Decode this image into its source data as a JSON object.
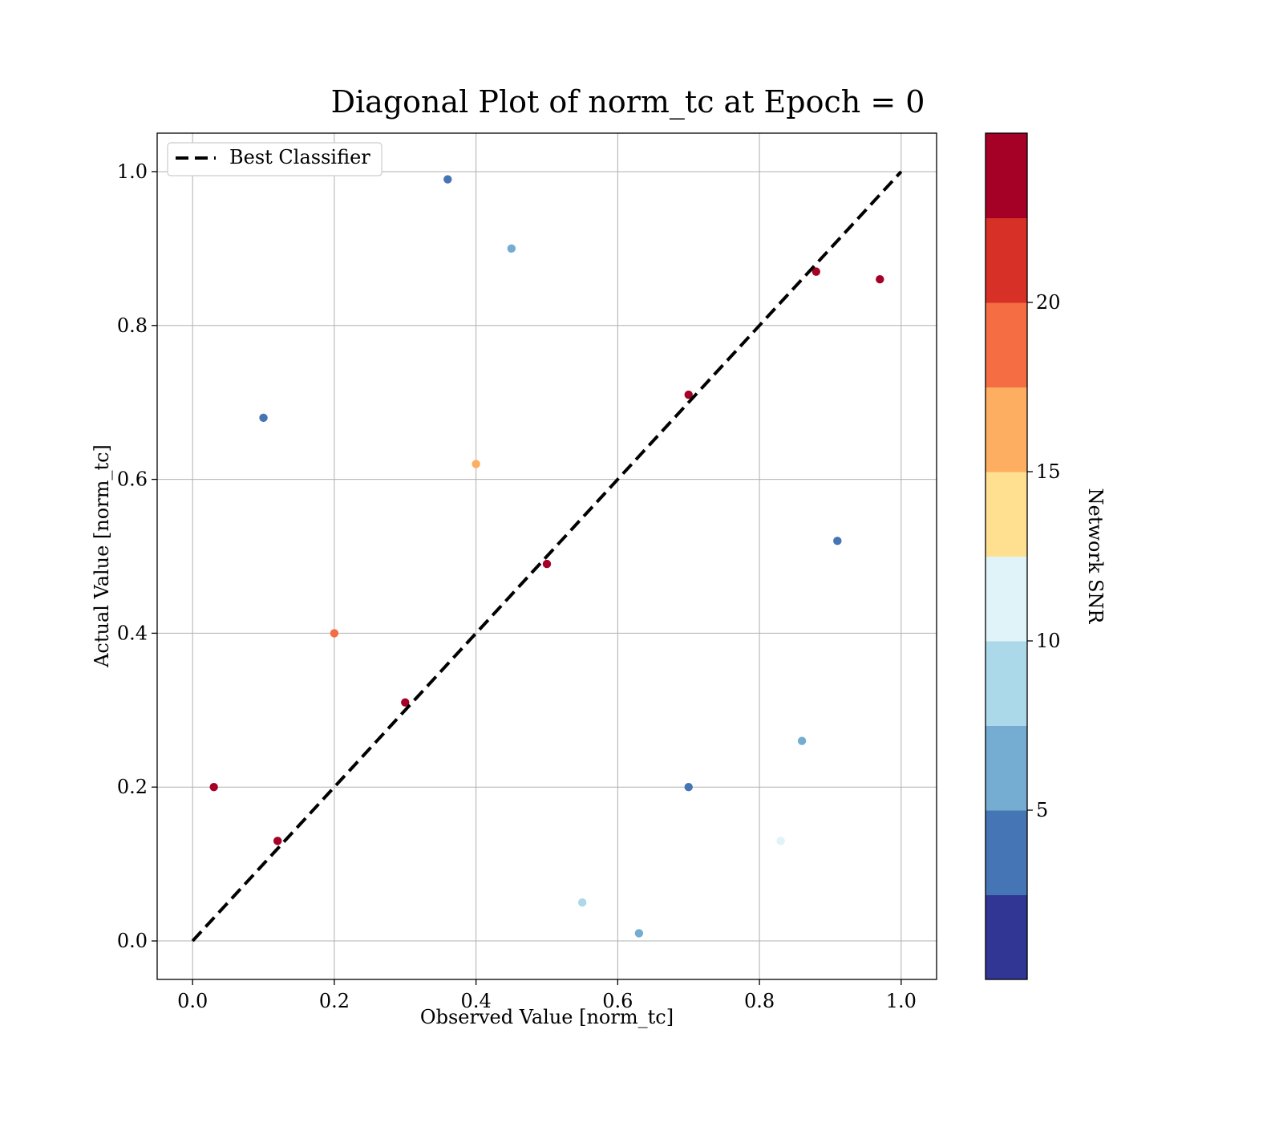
{
  "chart_data": {
    "type": "scatter",
    "title": "Diagonal Plot of norm_tc at Epoch = 0",
    "xlabel": "Observed Value [norm_tc]",
    "ylabel": "Actual Value [norm_tc]",
    "xlim": [
      -0.05,
      1.05
    ],
    "ylim": [
      -0.05,
      1.05
    ],
    "xticks": [
      0.0,
      0.2,
      0.4,
      0.6,
      0.8,
      1.0
    ],
    "yticks": [
      0.0,
      0.2,
      0.4,
      0.6,
      0.8,
      1.0
    ],
    "xtick_labels": [
      "0.0",
      "0.2",
      "0.4",
      "0.6",
      "0.8",
      "1.0"
    ],
    "ytick_labels": [
      "0.0",
      "0.2",
      "0.4",
      "0.6",
      "0.8",
      "1.0"
    ],
    "grid": true,
    "legend": {
      "placement": "top-left",
      "label": "Best Classifier"
    },
    "reference_line": {
      "label": "Best Classifier",
      "x": [
        0.0,
        1.0
      ],
      "y": [
        0.0,
        1.0
      ],
      "style": "dashed",
      "color": "#000000"
    },
    "colorbar": {
      "label": "Network SNR",
      "range": [
        0,
        25
      ],
      "ticks": [
        5,
        10,
        15,
        20
      ],
      "tick_labels": [
        "5",
        "10",
        "15",
        "20"
      ],
      "colors": [
        "#313695",
        "#4575b4",
        "#74add1",
        "#abd9e9",
        "#e0f3f8",
        "#fee090",
        "#fdae61",
        "#f46d43",
        "#d73027",
        "#a50026"
      ]
    },
    "points": [
      {
        "x": 0.12,
        "y": 0.13,
        "snr": 25
      },
      {
        "x": 0.3,
        "y": 0.31,
        "snr": 24
      },
      {
        "x": 0.5,
        "y": 0.49,
        "snr": 25
      },
      {
        "x": 0.7,
        "y": 0.71,
        "snr": 24
      },
      {
        "x": 0.88,
        "y": 0.87,
        "snr": 25
      },
      {
        "x": 0.2,
        "y": 0.4,
        "snr": 19
      },
      {
        "x": 0.4,
        "y": 0.62,
        "snr": 17
      },
      {
        "x": 0.45,
        "y": 0.9,
        "snr": 7
      },
      {
        "x": 0.55,
        "y": 0.05,
        "snr": 8
      },
      {
        "x": 0.7,
        "y": 0.2,
        "snr": 4
      },
      {
        "x": 0.1,
        "y": 0.68,
        "snr": 4
      },
      {
        "x": 0.91,
        "y": 0.52,
        "snr": 3
      },
      {
        "x": 0.83,
        "y": 0.13,
        "snr": 12
      },
      {
        "x": 0.97,
        "y": 0.86,
        "snr": 23
      },
      {
        "x": 0.03,
        "y": 0.2,
        "snr": 24
      },
      {
        "x": 0.86,
        "y": 0.26,
        "snr": 6
      },
      {
        "x": 0.36,
        "y": 0.99,
        "snr": 3
      },
      {
        "x": 0.63,
        "y": 0.01,
        "snr": 5
      }
    ]
  }
}
